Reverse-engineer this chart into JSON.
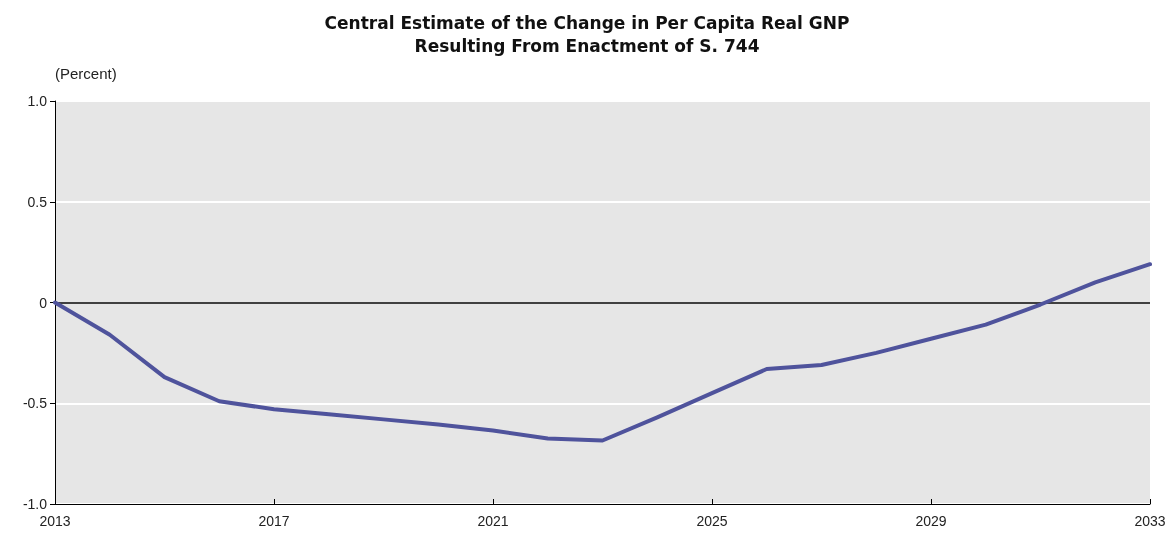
{
  "chart_data": {
    "type": "line",
    "title": "Central Estimate of the Change in Per Capita Real GNP\nResulting From Enactment of S. 744",
    "ylabel": "(Percent)",
    "x": [
      2013,
      2014,
      2015,
      2016,
      2017,
      2018,
      2019,
      2020,
      2021,
      2022,
      2023,
      2024,
      2025,
      2026,
      2027,
      2028,
      2029,
      2030,
      2031,
      2032,
      2033
    ],
    "series": [
      {
        "color": "#4f539c",
        "values": [
          0,
          -0.16,
          -0.37,
          -0.49,
          -0.53,
          -0.555,
          -0.58,
          -0.605,
          -0.635,
          -0.675,
          -0.685,
          -0.57,
          -0.45,
          -0.33,
          -0.31,
          -0.25,
          -0.18,
          -0.11,
          -0.01,
          0.1,
          0.19
        ]
      }
    ],
    "xlim": [
      2013,
      2033
    ],
    "xticks": [
      2013,
      2017,
      2021,
      2025,
      2029,
      2033
    ],
    "ylim": [
      -1,
      1
    ],
    "yticks": [
      {
        "value": -1,
        "label": "-1.0"
      },
      {
        "value": -0.5,
        "label": "-0.5"
      },
      0,
      {
        "value": 0.5,
        "label": "0.5"
      },
      {
        "value": 1,
        "label": "1.0"
      }
    ],
    "ref_lines": [
      {
        "axis": "y",
        "value": 0,
        "color": "#000000"
      }
    ],
    "grid": "y",
    "marker": "none",
    "line_style": "solid"
  }
}
